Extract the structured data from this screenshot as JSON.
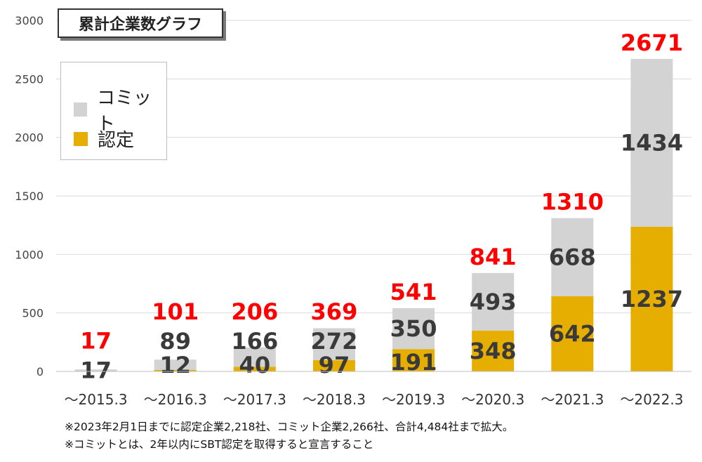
{
  "chart_data": {
    "type": "bar",
    "stacked": true,
    "title": "累計企業数グラフ",
    "categories": [
      "～2015.3",
      "～2016.3",
      "～2017.3",
      "～2018.3",
      "～2019.3",
      "～2020.3",
      "～2021.3",
      "～2022.3"
    ],
    "series": [
      {
        "name": "認定",
        "color": "#E6AE00",
        "values": [
          0,
          12,
          40,
          97,
          191,
          348,
          642,
          1237
        ],
        "labels": [
          "",
          "12",
          "40",
          "97",
          "191",
          "348",
          "642",
          "1237"
        ]
      },
      {
        "name": "コミット",
        "color": "#D3D3D3",
        "values": [
          17,
          89,
          166,
          272,
          350,
          493,
          668,
          1434
        ],
        "labels": [
          "17",
          "89",
          "166",
          "272",
          "350",
          "493",
          "668",
          "1434"
        ]
      }
    ],
    "totals": [
      17,
      101,
      206,
      369,
      541,
      841,
      1310,
      2671
    ],
    "total_color": "#FF0000",
    "ylim": [
      0,
      3000
    ],
    "yticks": [
      0,
      500,
      1000,
      1500,
      2000,
      2500,
      3000
    ],
    "grid": true,
    "legend_position": "top-left"
  },
  "legend": [
    {
      "label": "コミット",
      "color": "#D3D3D3"
    },
    {
      "label": "認定",
      "color": "#E6AE00"
    }
  ],
  "notes": [
    "※2023年2月1日までに認定企業2,218社、コミット企業2,266社、合計4,484社まで拡大。",
    "※コミットとは、2年以内にSBT認定を取得すると宣言すること"
  ]
}
